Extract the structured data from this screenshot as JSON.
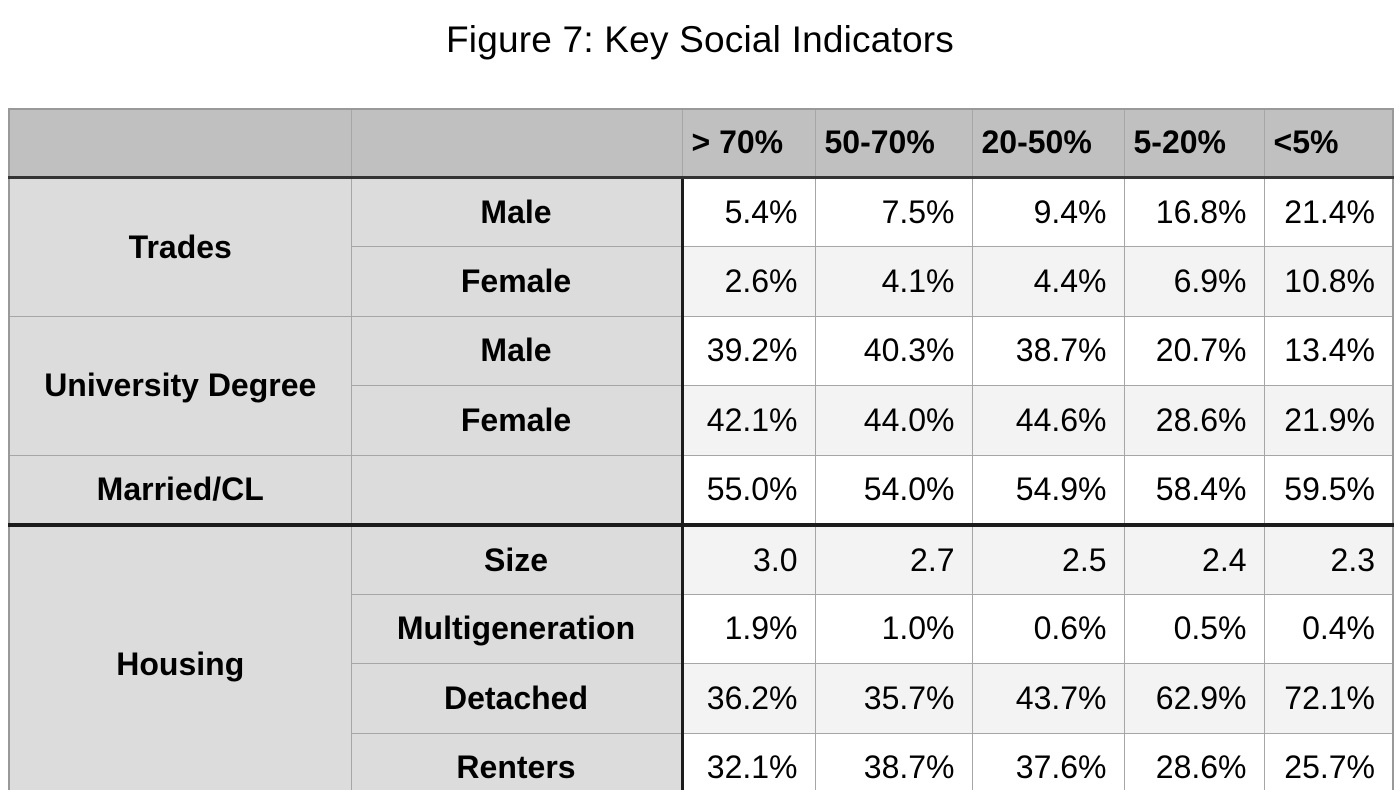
{
  "page": {
    "figure_title": "Figure 7: Key Social Indicators"
  },
  "colors": {
    "header_bg": "#c0c0c0",
    "label_bg": "#dcdcdc",
    "row_bg": "#ffffff",
    "row_alt_bg": "#f3f3f3",
    "grid_line": "#a6a6a6",
    "outer_border": "#999999",
    "header_rule": "#333333",
    "heavy_line": "#1c1c1c",
    "text": "#000000"
  },
  "chart_data": {
    "type": "table",
    "title": "Figure 7: Key Social Indicators",
    "column_headers": [
      "> 70%",
      "50-70%",
      "20-50%",
      "5-20%",
      "<5%"
    ],
    "corner_labels": [
      "",
      ""
    ],
    "row_groups": [
      {
        "label": "Trades",
        "divider_above": false,
        "rows": [
          {
            "label": "Male",
            "values": [
              "5.4%",
              "7.5%",
              "9.4%",
              "16.8%",
              "21.4%"
            ]
          },
          {
            "label": "Female",
            "values": [
              "2.6%",
              "4.1%",
              "4.4%",
              "6.9%",
              "10.8%"
            ]
          }
        ]
      },
      {
        "label": "University Degree",
        "divider_above": false,
        "rows": [
          {
            "label": "Male",
            "values": [
              "39.2%",
              "40.3%",
              "38.7%",
              "20.7%",
              "13.4%"
            ]
          },
          {
            "label": "Female",
            "values": [
              "42.1%",
              "44.0%",
              "44.6%",
              "28.6%",
              "21.9%"
            ]
          }
        ]
      },
      {
        "label": "Married/CL",
        "divider_above": false,
        "rows": [
          {
            "label": "",
            "values": [
              "55.0%",
              "54.0%",
              "54.9%",
              "58.4%",
              "59.5%"
            ]
          }
        ]
      },
      {
        "label": "Housing",
        "divider_above": true,
        "rows": [
          {
            "label": "Size",
            "values": [
              "3.0",
              "2.7",
              "2.5",
              "2.4",
              "2.3"
            ]
          },
          {
            "label": "Multigeneration",
            "values": [
              "1.9%",
              "1.0%",
              "0.6%",
              "0.5%",
              "0.4%"
            ]
          },
          {
            "label": "Detached",
            "values": [
              "36.2%",
              "35.7%",
              "43.7%",
              "62.9%",
              "72.1%"
            ]
          },
          {
            "label": "Renters",
            "values": [
              "32.1%",
              "38.7%",
              "37.6%",
              "28.6%",
              "25.7%"
            ]
          }
        ]
      }
    ]
  }
}
